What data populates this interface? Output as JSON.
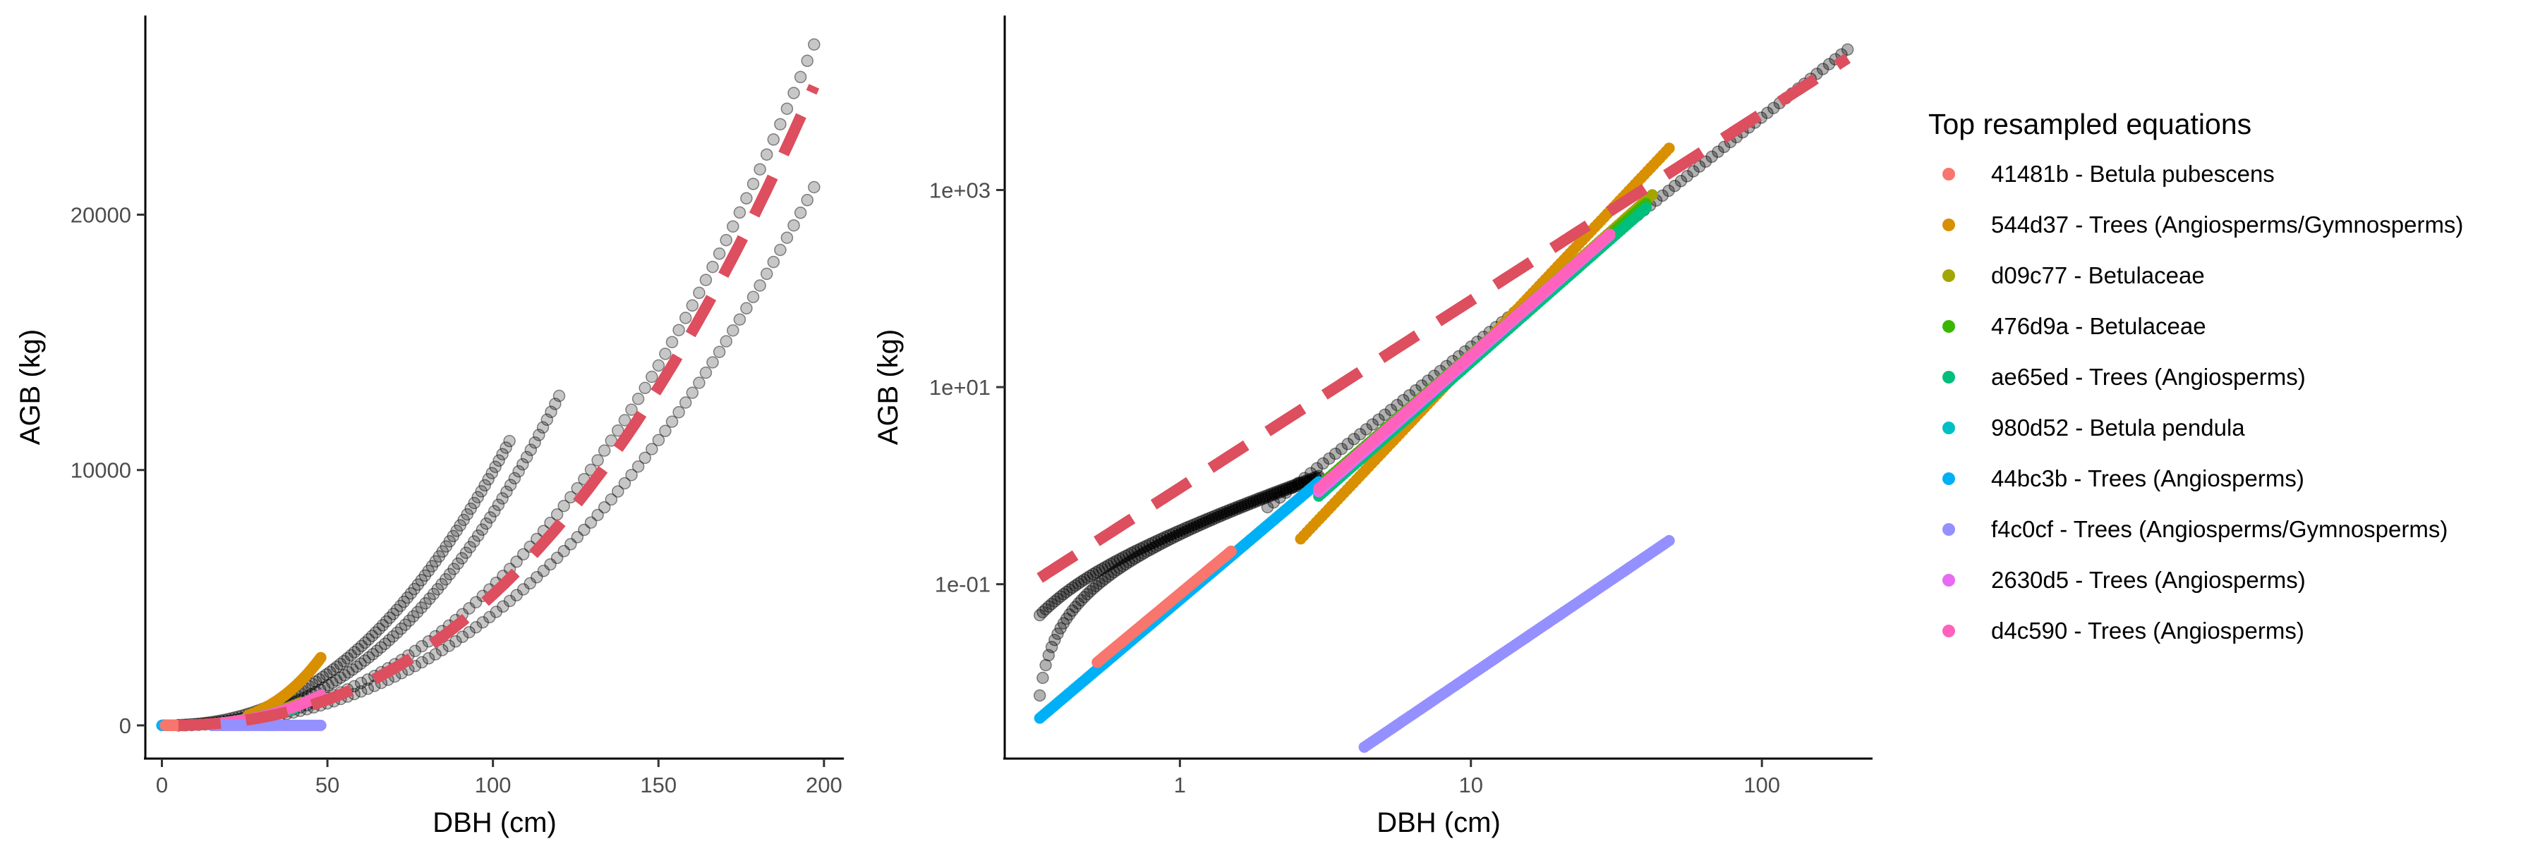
{
  "chart_data": [
    {
      "type": "scatter",
      "panel": "left",
      "xlabel": "DBH (cm)",
      "ylabel": "AGB (kg)",
      "xlim": [
        -5,
        206
      ],
      "ylim": [
        -1300,
        27800
      ],
      "x_ticks": [
        0,
        50,
        100,
        150,
        200
      ],
      "x_tick_labels": [
        "0",
        "50",
        "100",
        "150",
        "200"
      ],
      "y_ticks": [
        0,
        10000,
        20000
      ],
      "y_tick_labels": [
        "0",
        "10000",
        "20000"
      ],
      "grid": false,
      "background_points": [
        {
          "name": "c1",
          "x_range": [
            5,
            105
          ],
          "formula": "power",
          "a": 0.25,
          "b": 2.3,
          "color": "#000000",
          "opacity": 0.22
        },
        {
          "name": "c2",
          "x_range": [
            5,
            120
          ],
          "formula": "power",
          "a": 0.12,
          "b": 2.42,
          "color": "#000000",
          "opacity": 0.22
        },
        {
          "name": "c3",
          "x_range": [
            5,
            197
          ],
          "formula": "power",
          "a": 0.114,
          "b": 2.34,
          "color": "#000000",
          "opacity": 0.22
        },
        {
          "name": "c4",
          "x_range": [
            5,
            197
          ],
          "formula": "power",
          "a": 0.095,
          "b": 2.33,
          "color": "#000000",
          "opacity": 0.22
        }
      ],
      "series": [
        {
          "x_range": [
            26,
            48
          ],
          "formula": "power",
          "a": 0.0145,
          "b": 3.13,
          "color": "#d89000"
        },
        {
          "x_range": [
            1,
            42
          ],
          "formula": "power",
          "a": 0.05,
          "b": 2.62,
          "color": "#a3a500"
        },
        {
          "x_range": [
            1,
            40
          ],
          "formula": "power",
          "a": 0.06,
          "b": 2.55,
          "color": "#39b600"
        },
        {
          "x_range": [
            1,
            40
          ],
          "formula": "power",
          "a": 0.045,
          "b": 2.6,
          "color": "#00bf7d"
        },
        {
          "x_range": [
            0,
            6
          ],
          "formula": "power",
          "a": 0.07,
          "b": 2.5,
          "color": "#00bfc4"
        },
        {
          "x_range": [
            0,
            4
          ],
          "formula": "power",
          "a": 0.07,
          "b": 2.5,
          "color": "#00b0f6"
        },
        {
          "x_range": [
            1,
            15
          ],
          "formula": "power",
          "a": 0.05,
          "b": 2.6,
          "color": "#f8766d"
        },
        {
          "x_range": [
            15,
            48
          ],
          "formula": "power",
          "a": 0.05,
          "b": 2.6,
          "color": "#e76bf3"
        },
        {
          "x_range": [
            15,
            48
          ],
          "formula": "power",
          "a": 0.05,
          "b": 2.6,
          "color": "#ff62bc"
        },
        {
          "x_range": [
            15,
            48
          ],
          "formula": "power",
          "a": 0.00012,
          "b": 2.0,
          "color": "#9590ff"
        }
      ],
      "fitted_curve": {
        "x_range": [
          5,
          197
        ],
        "formula": "power",
        "a": 0.107,
        "b": 2.34,
        "color": "#dd4e5e",
        "style": "dashed"
      }
    },
    {
      "type": "scatter",
      "panel": "right",
      "xlabel": "DBH (cm)",
      "ylabel": "AGB (kg)",
      "x_scale": "log10",
      "y_scale": "log10",
      "xlim": [
        0.25,
        240
      ],
      "ylim": [
        0.0017,
        59000
      ],
      "x_ticks": [
        1,
        10,
        100
      ],
      "x_tick_labels": [
        "1",
        "10",
        "100"
      ],
      "y_ticks": [
        0.1,
        10,
        1000
      ],
      "y_tick_labels": [
        "1e-01",
        "1e+01",
        "1e+03"
      ],
      "grid": false,
      "background_points": [
        {
          "name": "dark-main",
          "x_range": [
            2,
            197
          ],
          "formula": "power",
          "a": 0.12,
          "b": 2.33,
          "color": "#000000",
          "opacity": 0.3
        },
        {
          "name": "dark-small",
          "x_range": [
            0.33,
            3
          ],
          "formula": "power",
          "a": 0.45,
          "b": 1.0,
          "c": -0.1,
          "color": "#000000",
          "opacity": 0.3
        },
        {
          "name": "dark-small-2",
          "x_range": [
            0.33,
            3
          ],
          "formula": "power",
          "a": 0.48,
          "b": 0.95,
          "c": -0.16,
          "color": "#000000",
          "opacity": 0.3
        }
      ],
      "series": [
        {
          "x_range": [
            2.6,
            48
          ],
          "formula": "power",
          "a": 0.0145,
          "b": 3.13,
          "color": "#d89000"
        },
        {
          "x_range": [
            3,
            42
          ],
          "formula": "power",
          "a": 0.05,
          "b": 2.62,
          "color": "#a3a500"
        },
        {
          "x_range": [
            3,
            40
          ],
          "formula": "power",
          "a": 0.06,
          "b": 2.55,
          "color": "#39b600"
        },
        {
          "x_range": [
            3,
            40
          ],
          "formula": "power",
          "a": 0.045,
          "b": 2.6,
          "color": "#00bf7d"
        },
        {
          "x_range": [
            0.55,
            3
          ],
          "formula": "power",
          "a": 0.07,
          "b": 2.5,
          "color": "#00bfc4"
        },
        {
          "x_range": [
            0.33,
            3
          ],
          "formula": "power",
          "a": 0.07,
          "b": 2.5,
          "color": "#00b0f6"
        },
        {
          "x_range": [
            0.52,
            1.5
          ],
          "formula": "power",
          "a": 0.08,
          "b": 2.45,
          "color": "#f8766d"
        },
        {
          "x_range": [
            3,
            30
          ],
          "formula": "power",
          "a": 0.05,
          "b": 2.6,
          "color": "#e76bf3"
        },
        {
          "x_range": [
            3,
            30
          ],
          "formula": "power",
          "a": 0.055,
          "b": 2.58,
          "color": "#ff62bc"
        },
        {
          "x_range": [
            4.3,
            48
          ],
          "formula": "power",
          "a": 0.00012,
          "b": 2.0,
          "color": "#9590ff"
        }
      ],
      "fitted_curve": {
        "x_range": [
          0.33,
          197
        ],
        "formula": "power",
        "a": 0.95,
        "b": 1.9,
        "color": "#dd4e5e",
        "style": "dashed"
      }
    }
  ],
  "legend": {
    "title": "Top resampled equations",
    "placement": "right",
    "entries": [
      {
        "label": "41481b - Betula pubescens",
        "color": "#f8766d"
      },
      {
        "label": "544d37 - Trees (Angiosperms/Gymnosperms)",
        "color": "#d89000"
      },
      {
        "label": "d09c77 - Betulaceae",
        "color": "#a3a500"
      },
      {
        "label": "476d9a - Betulaceae",
        "color": "#39b600"
      },
      {
        "label": "ae65ed - Trees (Angiosperms)",
        "color": "#00bf7d"
      },
      {
        "label": "980d52 - Betula pendula",
        "color": "#00bfc4"
      },
      {
        "label": "44bc3b - Trees (Angiosperms)",
        "color": "#00b0f6"
      },
      {
        "label": "f4c0cf - Trees (Angiosperms/Gymnosperms)",
        "color": "#9590ff"
      },
      {
        "label": "2630d5 - Trees (Angiosperms)",
        "color": "#e76bf3"
      },
      {
        "label": "d4c590 - Trees (Angiosperms)",
        "color": "#ff62bc"
      }
    ]
  }
}
